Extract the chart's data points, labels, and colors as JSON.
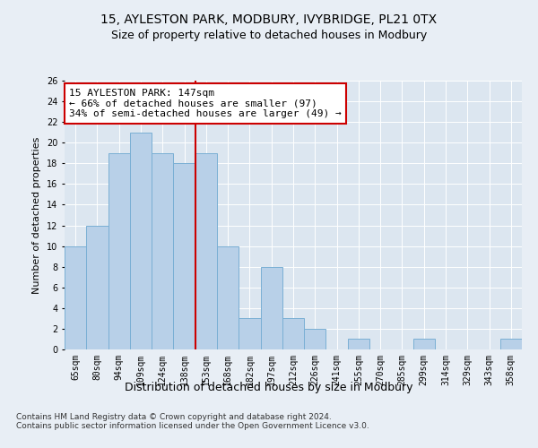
{
  "title1": "15, AYLESTON PARK, MODBURY, IVYBRIDGE, PL21 0TX",
  "title2": "Size of property relative to detached houses in Modbury",
  "xlabel": "Distribution of detached houses by size in Modbury",
  "ylabel": "Number of detached properties",
  "categories": [
    "65sqm",
    "80sqm",
    "94sqm",
    "109sqm",
    "124sqm",
    "138sqm",
    "153sqm",
    "168sqm",
    "182sqm",
    "197sqm",
    "212sqm",
    "226sqm",
    "241sqm",
    "255sqm",
    "270sqm",
    "285sqm",
    "299sqm",
    "314sqm",
    "329sqm",
    "343sqm",
    "358sqm"
  ],
  "values": [
    10,
    12,
    19,
    21,
    19,
    18,
    19,
    10,
    3,
    8,
    3,
    2,
    0,
    1,
    0,
    0,
    1,
    0,
    0,
    0,
    1
  ],
  "bar_color": "#b8d0e8",
  "bar_edge_color": "#7aafd4",
  "vline_color": "#cc0000",
  "annotation_text": "15 AYLESTON PARK: 147sqm\n← 66% of detached houses are smaller (97)\n34% of semi-detached houses are larger (49) →",
  "annotation_box_color": "#ffffff",
  "annotation_box_edge": "#cc0000",
  "ylim": [
    0,
    26
  ],
  "yticks": [
    0,
    2,
    4,
    6,
    8,
    10,
    12,
    14,
    16,
    18,
    20,
    22,
    24,
    26
  ],
  "background_color": "#e8eef5",
  "plot_bg_color": "#dce6f0",
  "footer": "Contains HM Land Registry data © Crown copyright and database right 2024.\nContains public sector information licensed under the Open Government Licence v3.0.",
  "title1_fontsize": 10,
  "title2_fontsize": 9,
  "xlabel_fontsize": 9,
  "ylabel_fontsize": 8,
  "tick_fontsize": 7,
  "footer_fontsize": 6.5,
  "annotation_fontsize": 8
}
